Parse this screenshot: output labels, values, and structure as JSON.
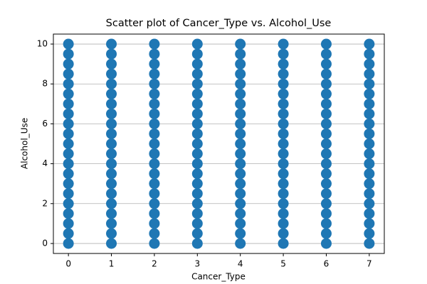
{
  "chart_data": {
    "type": "scatter",
    "title": "Scatter plot of Cancer_Type vs. Alcohol_Use",
    "x_label": "Cancer_Type",
    "y_label": "Alcohol_Use",
    "color": "#1f77b4",
    "grid": "y",
    "xlim": [
      -0.35,
      7.35
    ],
    "ylim": [
      -0.5,
      10.5
    ],
    "xticks": [
      0,
      1,
      2,
      3,
      4,
      5,
      6,
      7
    ],
    "yticks": [
      0,
      2,
      4,
      6,
      8,
      10
    ],
    "x": [
      0,
      0,
      0,
      0,
      0,
      0,
      0,
      0,
      0,
      0,
      0,
      0,
      0,
      0,
      0,
      0,
      0,
      0,
      0,
      0,
      0,
      1,
      1,
      1,
      1,
      1,
      1,
      1,
      1,
      1,
      1,
      1,
      1,
      1,
      1,
      1,
      1,
      1,
      1,
      1,
      1,
      1,
      2,
      2,
      2,
      2,
      2,
      2,
      2,
      2,
      2,
      2,
      2,
      2,
      2,
      2,
      2,
      2,
      2,
      2,
      2,
      2,
      2,
      3,
      3,
      3,
      3,
      3,
      3,
      3,
      3,
      3,
      3,
      3,
      3,
      3,
      3,
      3,
      3,
      3,
      3,
      3,
      3,
      3,
      4,
      4,
      4,
      4,
      4,
      4,
      4,
      4,
      4,
      4,
      4,
      4,
      4,
      4,
      4,
      4,
      4,
      4,
      4,
      4,
      4,
      5,
      5,
      5,
      5,
      5,
      5,
      5,
      5,
      5,
      5,
      5,
      5,
      5,
      5,
      5,
      5,
      5,
      5,
      5,
      5,
      5,
      6,
      6,
      6,
      6,
      6,
      6,
      6,
      6,
      6,
      6,
      6,
      6,
      6,
      6,
      6,
      6,
      6,
      6,
      6,
      6,
      6,
      7,
      7,
      7,
      7,
      7,
      7,
      7,
      7,
      7,
      7,
      7,
      7,
      7,
      7,
      7,
      7,
      7,
      7,
      7,
      7,
      7
    ],
    "values": [
      0,
      0.5,
      1,
      1.5,
      2,
      2.5,
      3,
      3.5,
      4,
      4.5,
      5,
      5.5,
      6,
      6.5,
      7,
      7.5,
      8,
      8.5,
      9,
      9.5,
      10,
      0,
      0.5,
      1,
      1.5,
      2,
      2.5,
      3,
      3.5,
      4,
      4.5,
      5,
      5.5,
      6,
      6.5,
      7,
      7.5,
      8,
      8.5,
      9,
      9.5,
      10,
      0,
      0.5,
      1,
      1.5,
      2,
      2.5,
      3,
      3.5,
      4,
      4.5,
      5,
      5.5,
      6,
      6.5,
      7,
      7.5,
      8,
      8.5,
      9,
      9.5,
      10,
      0,
      0.5,
      1,
      1.5,
      2,
      2.5,
      3,
      3.5,
      4,
      4.5,
      5,
      5.5,
      6,
      6.5,
      7,
      7.5,
      8,
      8.5,
      9,
      9.5,
      10,
      0,
      0.5,
      1,
      1.5,
      2,
      2.5,
      3,
      3.5,
      4,
      4.5,
      5,
      5.5,
      6,
      6.5,
      7,
      7.5,
      8,
      8.5,
      9,
      9.5,
      10,
      0,
      0.5,
      1,
      1.5,
      2,
      2.5,
      3,
      3.5,
      4,
      4.5,
      5,
      5.5,
      6,
      6.5,
      7,
      7.5,
      8,
      8.5,
      9,
      9.5,
      10,
      0,
      0.5,
      1,
      1.5,
      2,
      2.5,
      3,
      3.5,
      4,
      4.5,
      5,
      5.5,
      6,
      6.5,
      7,
      7.5,
      8,
      8.5,
      9,
      9.5,
      10,
      0,
      0.5,
      1,
      1.5,
      2,
      2.5,
      3,
      3.5,
      4,
      4.5,
      5,
      5.5,
      6,
      6.5,
      7,
      7.5,
      8,
      8.5,
      9,
      9.5,
      10
    ]
  }
}
